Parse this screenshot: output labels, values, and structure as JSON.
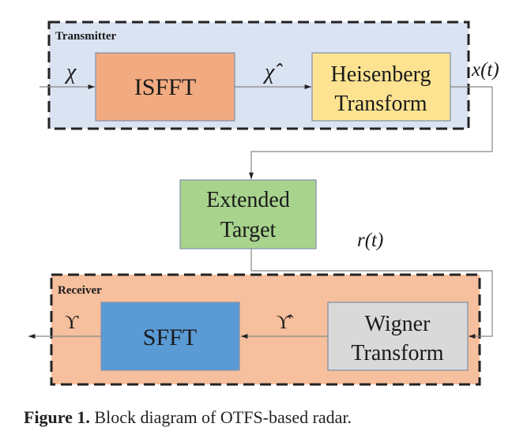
{
  "transmitter": {
    "label": "Transmitter",
    "color": "#dae3f1",
    "blocks": [
      {
        "label": "ISFFT",
        "color": "#f2ab81"
      },
      {
        "line1": "Heisenberg",
        "line2": "Transform",
        "color": "#fde391"
      }
    ]
  },
  "target": {
    "line1": "Extended",
    "line2": "Target",
    "color": "#a8d38d"
  },
  "receiver": {
    "label": "Receiver",
    "color": "#f6bf9d",
    "blocks": [
      {
        "label": "SFFT",
        "color": "#5b9bd5"
      },
      {
        "line1": "Wigner",
        "line2": "Transform",
        "color": "#d9d9d9"
      }
    ]
  },
  "signals": {
    "input": "χ",
    "tx_mid": "χ̂",
    "tx_out": "x(t)",
    "rx_in": "r(t)",
    "rx_mid": "ϒ̂",
    "output": "ϒ"
  },
  "caption": {
    "prefix": "Figure 1.",
    "text": " Block diagram of OTFS-based radar."
  }
}
